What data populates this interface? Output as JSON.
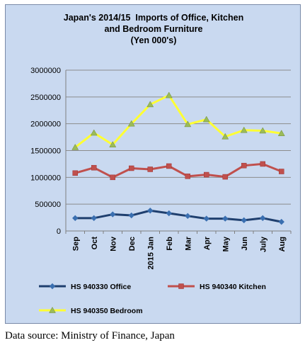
{
  "chart_data": {
    "type": "line",
    "title_lines": [
      "Japan's 2014/15  Imports of Office, Kitchen",
      "and Bedroom Furniture",
      "(Yen 000's)"
    ],
    "categories": [
      "Sep",
      "Oct",
      "Nov",
      "Dec",
      "2015 Jan",
      "Feb",
      "Mar",
      "Apr",
      "May",
      "Jun",
      "July",
      "Aug"
    ],
    "ylim": [
      0,
      3000000
    ],
    "yticks": [
      "0",
      "500000",
      "1000000",
      "1500000",
      "2000000",
      "2500000",
      "3000000"
    ],
    "ytick_values": [
      0,
      500000,
      1000000,
      1500000,
      2000000,
      2500000,
      3000000
    ],
    "grid": true,
    "legend_position": "bottom",
    "series": [
      {
        "name": "HS 940330 Office",
        "color": "#1f3f6e",
        "marker": "diamond",
        "values": [
          240000,
          240000,
          310000,
          290000,
          380000,
          330000,
          280000,
          230000,
          230000,
          200000,
          240000,
          170000
        ]
      },
      {
        "name": "HS 940340 Kitchen",
        "color": "#c0504d",
        "marker": "square",
        "values": [
          1080000,
          1180000,
          1000000,
          1170000,
          1150000,
          1210000,
          1020000,
          1050000,
          1010000,
          1220000,
          1250000,
          1110000
        ]
      },
      {
        "name": "HS 940350 Bedroom",
        "color": "#ffff33",
        "marker": "triangle",
        "values": [
          1560000,
          1830000,
          1610000,
          2000000,
          2360000,
          2530000,
          1990000,
          2080000,
          1760000,
          1880000,
          1870000,
          1820000
        ]
      }
    ]
  },
  "source": "Data source: Ministry of Finance, Japan"
}
